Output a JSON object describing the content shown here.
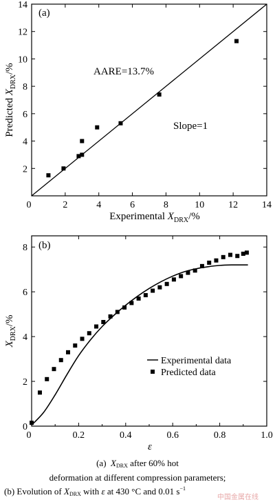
{
  "chart_data": [
    {
      "type": "scatter",
      "panel_label": "(a)",
      "xlabel_prefix": "Experimental ",
      "xlabel_var": "X",
      "xlabel_sub": "DRX",
      "xlabel_suffix": "/%",
      "ylabel_prefix": "Predicted ",
      "ylabel_var": "X",
      "ylabel_sub": "DRX",
      "ylabel_suffix": "/%",
      "xlim": [
        0,
        14
      ],
      "ylim": [
        0,
        14
      ],
      "xticks": [
        "0",
        "2",
        "4",
        "6",
        "8",
        "10",
        "12",
        "14"
      ],
      "yticks": [
        "0",
        "2",
        "4",
        "6",
        "8",
        "10",
        "12",
        "14"
      ],
      "annotations": [
        "AARE=13.7%",
        "Slope=1"
      ],
      "reference_line": {
        "slope": 1,
        "intercept": 0
      },
      "points": [
        {
          "x": 1.0,
          "y": 1.5
        },
        {
          "x": 1.9,
          "y": 2.0
        },
        {
          "x": 2.8,
          "y": 2.9
        },
        {
          "x": 3.0,
          "y": 3.0
        },
        {
          "x": 3.0,
          "y": 4.0
        },
        {
          "x": 3.9,
          "y": 5.0
        },
        {
          "x": 5.3,
          "y": 5.3
        },
        {
          "x": 7.6,
          "y": 7.4
        },
        {
          "x": 12.2,
          "y": 11.3
        }
      ]
    },
    {
      "type": "line",
      "panel_label": "(b)",
      "xlabel": "ε",
      "ylabel_var": "X",
      "ylabel_sub": "DRX",
      "ylabel_suffix": "/%",
      "xlim": [
        0,
        1.0
      ],
      "ylim": [
        0,
        8.5
      ],
      "xticks": [
        "0",
        "0.2",
        "0.4",
        "0.6",
        "0.8",
        "1.0"
      ],
      "yticks": [
        "0",
        "2",
        "4",
        "6",
        "8"
      ],
      "legend_position": "bottom-right",
      "series": [
        {
          "name": "Experimental data",
          "style": "line",
          "x": [
            0,
            0.05,
            0.1,
            0.15,
            0.2,
            0.25,
            0.3,
            0.35,
            0.4,
            0.45,
            0.5,
            0.55,
            0.6,
            0.65,
            0.7,
            0.75,
            0.8,
            0.85,
            0.9,
            0.92
          ],
          "y": [
            0.05,
            0.6,
            1.4,
            2.3,
            3.15,
            3.85,
            4.45,
            4.95,
            5.4,
            5.8,
            6.15,
            6.45,
            6.7,
            6.9,
            7.03,
            7.12,
            7.18,
            7.2,
            7.2,
            7.2
          ]
        },
        {
          "name": "Predicted data",
          "style": "markers",
          "x": [
            0,
            0.035,
            0.065,
            0.095,
            0.125,
            0.155,
            0.185,
            0.215,
            0.245,
            0.275,
            0.305,
            0.335,
            0.365,
            0.395,
            0.425,
            0.455,
            0.485,
            0.515,
            0.545,
            0.575,
            0.605,
            0.635,
            0.665,
            0.695,
            0.725,
            0.755,
            0.785,
            0.815,
            0.845,
            0.875,
            0.9,
            0.915
          ],
          "y": [
            0.15,
            1.5,
            2.1,
            2.55,
            2.95,
            3.3,
            3.6,
            3.9,
            4.15,
            4.45,
            4.65,
            4.9,
            5.1,
            5.3,
            5.5,
            5.7,
            5.85,
            6.05,
            6.2,
            6.35,
            6.55,
            6.7,
            6.85,
            6.95,
            7.15,
            7.3,
            7.4,
            7.55,
            7.65,
            7.6,
            7.7,
            7.75
          ]
        }
      ]
    }
  ],
  "captions": {
    "a_label": "(a)",
    "a_var": "X",
    "a_sub": "DRX",
    "a_text": " after  60%  hot",
    "line2": "deformation   at   different   compression   parameters;",
    "b_prefix": "(b) Evolution of ",
    "b_var": "X",
    "b_sub": "DRX",
    "b_mid": " with ",
    "b_eps": "ε",
    "b_tail": " at 430 °C and 0.01 s",
    "b_sup": "−1"
  },
  "watermark": "中国金属在线"
}
